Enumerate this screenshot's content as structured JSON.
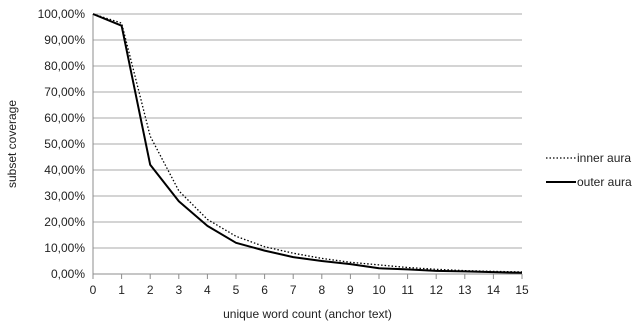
{
  "chart_data": {
    "type": "line",
    "title": "",
    "xlabel": "unique word count (anchor text)",
    "ylabel": "subset coverage",
    "x": [
      0,
      1,
      2,
      3,
      4,
      5,
      6,
      7,
      8,
      9,
      10,
      11,
      12,
      13,
      14,
      15
    ],
    "xlim": [
      0,
      15
    ],
    "ylim": [
      0,
      100
    ],
    "x_tick_labels": [
      "0",
      "1",
      "2",
      "3",
      "4",
      "5",
      "6",
      "7",
      "8",
      "9",
      "10",
      "11",
      "12",
      "13",
      "14",
      "15"
    ],
    "y_ticks": [
      0,
      10,
      20,
      30,
      40,
      50,
      60,
      70,
      80,
      90,
      100
    ],
    "y_tick_labels": [
      "0,00%",
      "10,00%",
      "20,00%",
      "30,00%",
      "40,00%",
      "50,00%",
      "60,00%",
      "70,00%",
      "80,00%",
      "90,00%",
      "100,00%"
    ],
    "grid": "horizontal",
    "legend_position": "right",
    "series": [
      {
        "name": "inner aura",
        "style": "dotted",
        "color": "#000000",
        "values": [
          100,
          96.5,
          53,
          32,
          21,
          14.5,
          10.5,
          8,
          6,
          4.5,
          3.5,
          2.5,
          1.8,
          1.3,
          1,
          0.8
        ]
      },
      {
        "name": "outer aura",
        "style": "solid",
        "color": "#000000",
        "values": [
          100,
          95.5,
          42,
          28,
          18.5,
          12,
          9,
          6.5,
          5,
          3.8,
          2.2,
          1.8,
          1.2,
          1,
          0.7,
          0.5
        ]
      }
    ]
  }
}
